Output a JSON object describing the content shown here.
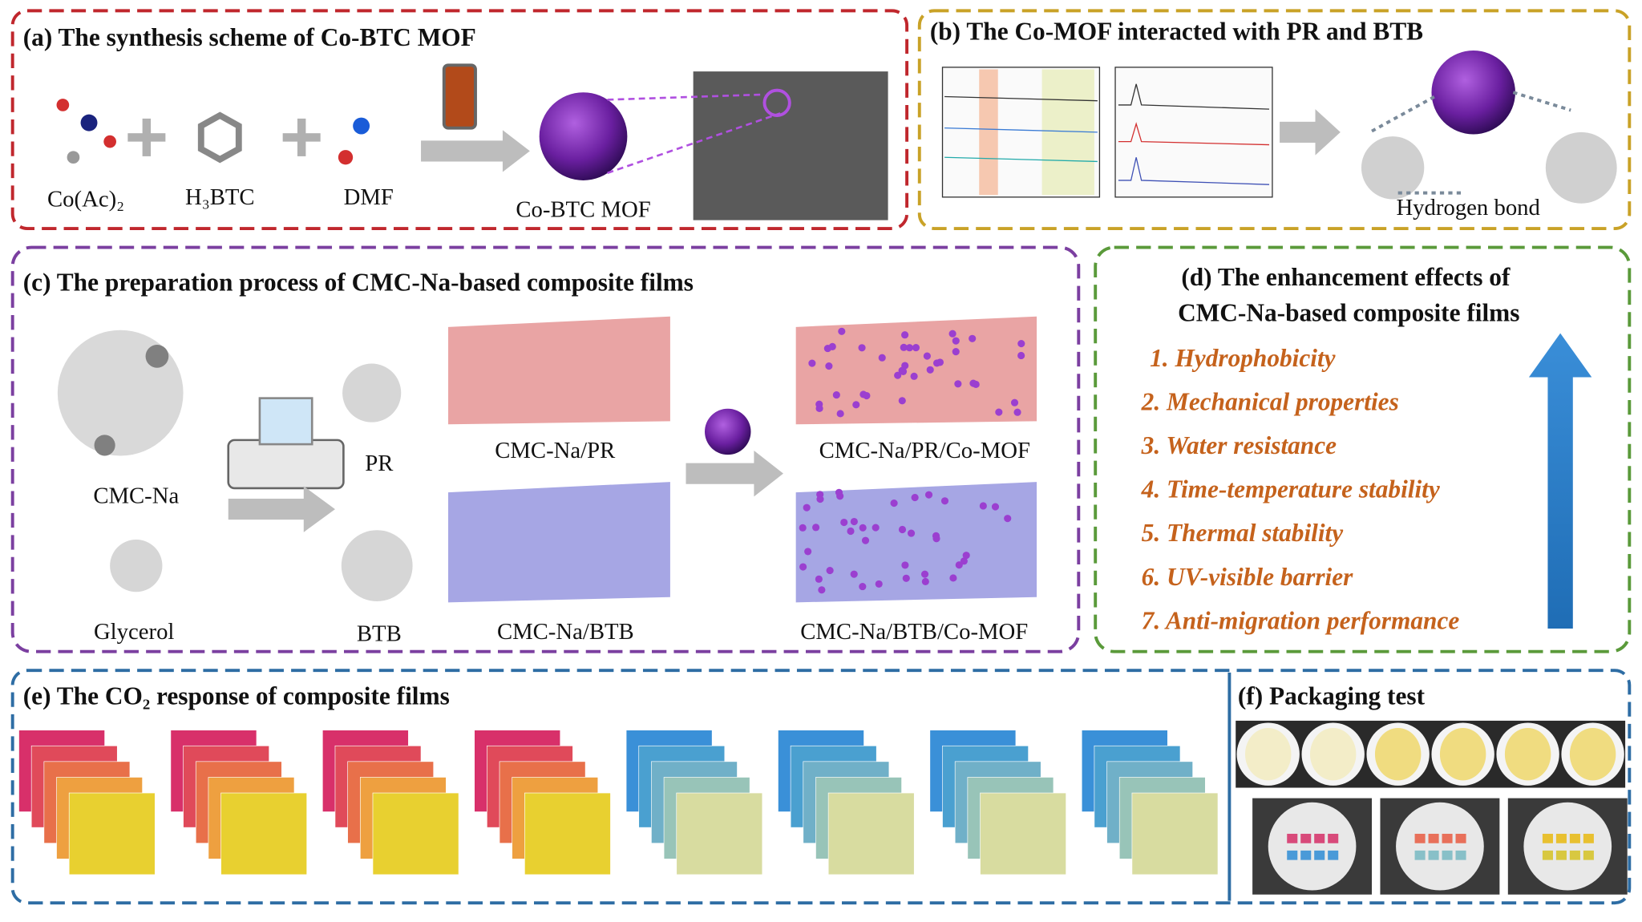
{
  "panels": {
    "a": {
      "title": "(a) The synthesis scheme of Co-BTC MOF",
      "labels": [
        "Co(Ac)₂",
        "H₃BTC",
        "DMF",
        "Co-BTC MOF"
      ]
    },
    "b": {
      "title": "(b) The Co-MOF interacted with PR and BTB",
      "labels": [
        "Hydrogen bond"
      ]
    },
    "c": {
      "title": "(c) The preparation process of CMC-Na-based composite films",
      "labels": [
        "CMC-Na",
        "Glycerol",
        "PR",
        "BTB",
        "CMC-Na/PR",
        "CMC-Na/BTB",
        "CMC-Na/PR/Co-MOF",
        "CMC-Na/BTB/Co-MOF"
      ]
    },
    "d": {
      "title": [
        "(d) The enhancement effects of",
        "CMC-Na-based composite films"
      ],
      "items": [
        "1. Hydrophobicity",
        "2. Mechanical properties",
        "3. Water resistance",
        "4. Time-temperature stability",
        "5. Thermal stability",
        "6. UV-visible barrier",
        "7. Anti-migration performance"
      ]
    },
    "e": {
      "title": "(e) The CO₂ response of composite films"
    },
    "f": {
      "title": "(f) Packaging test"
    }
  }
}
